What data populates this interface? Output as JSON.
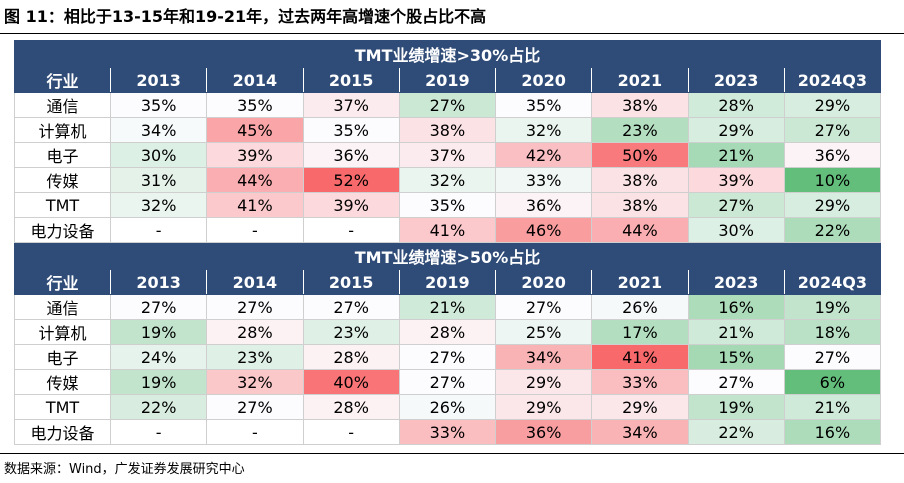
{
  "figure": {
    "title": "图 11：相比于13-15年和19-21年，过去两年高增速个股占比不高",
    "source": "数据来源：Wind，广发证券发展研究中心"
  },
  "chart_data": {
    "type": "table",
    "columns": [
      "行业",
      "2013",
      "2014",
      "2015",
      "2019",
      "2020",
      "2021",
      "2023",
      "2024Q3"
    ],
    "tables": [
      {
        "title": "TMT业绩增速>30%占比",
        "rows": [
          {
            "label": "通信",
            "values": [
              "35%",
              "35%",
              "37%",
              "27%",
              "35%",
              "38%",
              "28%",
              "29%"
            ]
          },
          {
            "label": "计算机",
            "values": [
              "34%",
              "45%",
              "35%",
              "38%",
              "32%",
              "23%",
              "29%",
              "27%"
            ]
          },
          {
            "label": "电子",
            "values": [
              "30%",
              "39%",
              "36%",
              "37%",
              "42%",
              "50%",
              "21%",
              "36%"
            ]
          },
          {
            "label": "传媒",
            "values": [
              "31%",
              "44%",
              "52%",
              "32%",
              "33%",
              "38%",
              "39%",
              "10%"
            ]
          },
          {
            "label": "TMT",
            "values": [
              "32%",
              "41%",
              "39%",
              "35%",
              "36%",
              "38%",
              "27%",
              "29%"
            ]
          },
          {
            "label": "电力设备",
            "values": [
              "-",
              "-",
              "-",
              "41%",
              "46%",
              "44%",
              "30%",
              "22%"
            ]
          }
        ]
      },
      {
        "title": "TMT业绩增速>50%占比",
        "rows": [
          {
            "label": "通信",
            "values": [
              "27%",
              "27%",
              "27%",
              "21%",
              "27%",
              "26%",
              "16%",
              "19%"
            ]
          },
          {
            "label": "计算机",
            "values": [
              "19%",
              "28%",
              "23%",
              "28%",
              "25%",
              "17%",
              "21%",
              "18%"
            ]
          },
          {
            "label": "电子",
            "values": [
              "24%",
              "23%",
              "28%",
              "27%",
              "34%",
              "41%",
              "15%",
              "27%"
            ]
          },
          {
            "label": "传媒",
            "values": [
              "19%",
              "32%",
              "40%",
              "27%",
              "29%",
              "33%",
              "27%",
              "6%"
            ]
          },
          {
            "label": "TMT",
            "values": [
              "22%",
              "27%",
              "28%",
              "26%",
              "29%",
              "29%",
              "19%",
              "21%"
            ]
          },
          {
            "label": "电力设备",
            "values": [
              "-",
              "-",
              "-",
              "33%",
              "36%",
              "34%",
              "22%",
              "16%"
            ]
          }
        ]
      }
    ],
    "colors": {
      "header_bg": "#2f4b77",
      "high": "#f8696b",
      "mid": "#fcfcff",
      "low": "#63be7b"
    }
  }
}
